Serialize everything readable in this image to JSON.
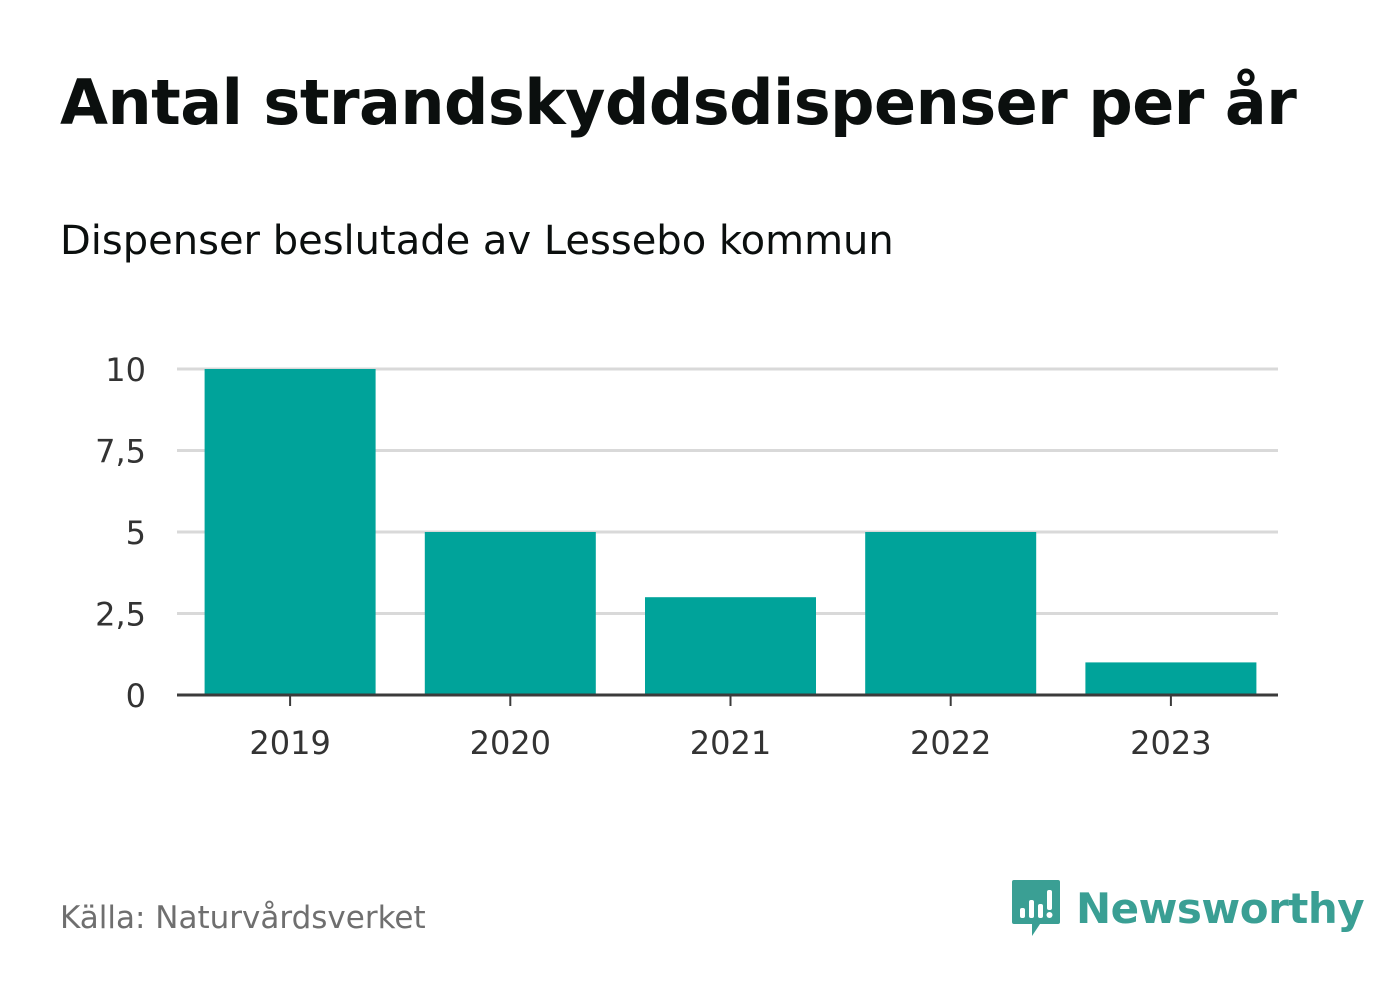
{
  "header": {
    "title": "Antal strandskyddsdispenser per år",
    "subtitle": "Dispenser beslutade av Lessebo kommun"
  },
  "footer": {
    "source": "Källa: Naturvårdsverket",
    "brand": "Newsworthy",
    "brand_icon": "newsworthy-logo-icon"
  },
  "colors": {
    "bar": "#00a39a",
    "grid": "#d9d9d9",
    "axis": "#3b3b3b",
    "brand": "#3a9f94"
  },
  "chart_data": {
    "type": "bar",
    "title": "Antal strandskyddsdispenser per år",
    "subtitle": "Dispenser beslutade av Lessebo kommun",
    "xlabel": "",
    "ylabel": "",
    "categories": [
      "2019",
      "2020",
      "2021",
      "2022",
      "2023"
    ],
    "values": [
      10,
      5,
      3,
      5,
      1
    ],
    "ylim": [
      0,
      10
    ],
    "yticks": [
      0,
      2.5,
      5,
      7.5,
      10
    ],
    "ytick_labels": [
      "0",
      "2,5",
      "5",
      "7,5",
      "10"
    ],
    "grid": true,
    "legend": "none"
  }
}
